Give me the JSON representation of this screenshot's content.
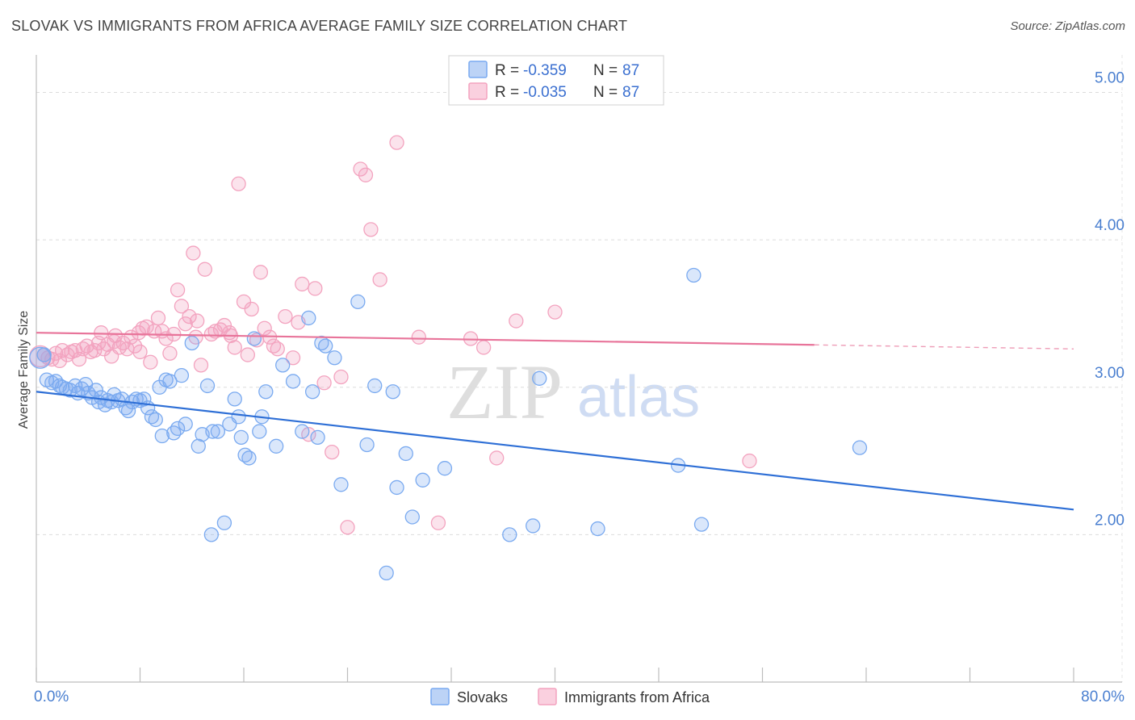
{
  "header": {
    "title": "SLOVAK VS IMMIGRANTS FROM AFRICA AVERAGE FAMILY SIZE CORRELATION CHART",
    "source": "Source: ZipAtlas.com"
  },
  "watermark": {
    "zip": "ZIP",
    "atlas": "atlas"
  },
  "stats_legend": {
    "rows": [
      {
        "r_label": "R = ",
        "r_value": "-0.359",
        "n_label": "N = ",
        "n_value": "87",
        "color": "#7aaaf0"
      },
      {
        "r_label": "R = ",
        "r_value": "-0.035",
        "n_label": "N = ",
        "n_value": "87",
        "color": "#f3a3bf"
      }
    ]
  },
  "chart_data": {
    "type": "scatter",
    "title": "SLOVAK VS IMMIGRANTS FROM AFRICA AVERAGE FAMILY SIZE CORRELATION CHART",
    "xlabel": "",
    "ylabel": "Average Family Size",
    "xlim": [
      0,
      80
    ],
    "ylim": [
      1.0,
      5.2
    ],
    "x_tick_labels": [
      "0.0%",
      "80.0%"
    ],
    "y_ticks": [
      2.0,
      3.0,
      4.0,
      5.0
    ],
    "y_tick_labels": [
      "2.00",
      "3.00",
      "4.00",
      "5.00"
    ],
    "grid": true,
    "legend_position": "bottom",
    "series": [
      {
        "name": "Slovaks",
        "color": "#7aaaf0",
        "line_color": "#2e6fd6",
        "trend": {
          "x": [
            0,
            80
          ],
          "y": [
            2.97,
            2.17
          ],
          "solid_to": 80
        },
        "points": [
          [
            0.3,
            3.2
          ],
          [
            0.6,
            3.22
          ],
          [
            0.8,
            3.05
          ],
          [
            1.2,
            3.03
          ],
          [
            1.5,
            3.04
          ],
          [
            1.8,
            3.01
          ],
          [
            2.0,
            3.0
          ],
          [
            2.3,
            2.99
          ],
          [
            2.6,
            2.98
          ],
          [
            3.0,
            3.01
          ],
          [
            3.2,
            2.96
          ],
          [
            3.5,
            2.99
          ],
          [
            3.8,
            3.02
          ],
          [
            4.0,
            2.96
          ],
          [
            4.3,
            2.93
          ],
          [
            4.6,
            2.98
          ],
          [
            4.8,
            2.9
          ],
          [
            5.0,
            2.93
          ],
          [
            5.3,
            2.88
          ],
          [
            5.5,
            2.91
          ],
          [
            5.8,
            2.9
          ],
          [
            6.0,
            2.95
          ],
          [
            6.3,
            2.91
          ],
          [
            6.6,
            2.92
          ],
          [
            6.9,
            2.86
          ],
          [
            7.1,
            2.84
          ],
          [
            7.4,
            2.9
          ],
          [
            7.7,
            2.92
          ],
          [
            8.0,
            2.91
          ],
          [
            8.3,
            2.92
          ],
          [
            8.6,
            2.86
          ],
          [
            8.9,
            2.8
          ],
          [
            9.2,
            2.78
          ],
          [
            9.5,
            3.0
          ],
          [
            9.7,
            2.67
          ],
          [
            10.0,
            3.05
          ],
          [
            10.3,
            3.04
          ],
          [
            10.6,
            2.69
          ],
          [
            10.9,
            2.72
          ],
          [
            11.2,
            3.08
          ],
          [
            11.5,
            2.75
          ],
          [
            12.0,
            3.3
          ],
          [
            12.5,
            2.6
          ],
          [
            12.8,
            2.68
          ],
          [
            13.2,
            3.01
          ],
          [
            13.6,
            2.7
          ],
          [
            14.0,
            2.7
          ],
          [
            14.5,
            2.08
          ],
          [
            14.9,
            2.75
          ],
          [
            15.3,
            2.92
          ],
          [
            15.6,
            2.8
          ],
          [
            15.8,
            2.66
          ],
          [
            16.1,
            2.54
          ],
          [
            16.4,
            2.52
          ],
          [
            16.8,
            3.33
          ],
          [
            17.2,
            2.7
          ],
          [
            17.4,
            2.8
          ],
          [
            17.7,
            2.97
          ],
          [
            18.5,
            2.6
          ],
          [
            19.0,
            3.15
          ],
          [
            19.8,
            3.04
          ],
          [
            20.5,
            2.7
          ],
          [
            21.0,
            3.47
          ],
          [
            21.3,
            2.97
          ],
          [
            21.7,
            2.66
          ],
          [
            22.0,
            3.3
          ],
          [
            22.3,
            3.28
          ],
          [
            23.0,
            3.2
          ],
          [
            23.5,
            2.34
          ],
          [
            24.8,
            3.58
          ],
          [
            25.5,
            2.61
          ],
          [
            26.1,
            3.01
          ],
          [
            27.0,
            1.74
          ],
          [
            27.5,
            2.97
          ],
          [
            27.8,
            2.32
          ],
          [
            28.5,
            2.55
          ],
          [
            29.0,
            2.12
          ],
          [
            29.8,
            2.37
          ],
          [
            31.5,
            2.45
          ],
          [
            36.5,
            2.0
          ],
          [
            38.3,
            2.06
          ],
          [
            38.8,
            3.06
          ],
          [
            43.3,
            2.04
          ],
          [
            49.5,
            2.47
          ],
          [
            50.7,
            3.76
          ],
          [
            51.3,
            2.07
          ],
          [
            63.5,
            2.59
          ],
          [
            13.5,
            2.0
          ]
        ]
      },
      {
        "name": "Immigrants from Africa",
        "color": "#f3a3bf",
        "line_color": "#e8749a",
        "trend": {
          "x": [
            0,
            80
          ],
          "y": [
            3.37,
            3.26
          ],
          "solid_to": 60
        },
        "points": [
          [
            0.3,
            3.21
          ],
          [
            0.6,
            3.22
          ],
          [
            0.9,
            3.2
          ],
          [
            1.2,
            3.19
          ],
          [
            1.5,
            3.23
          ],
          [
            1.8,
            3.18
          ],
          [
            2.0,
            3.25
          ],
          [
            2.4,
            3.22
          ],
          [
            2.7,
            3.24
          ],
          [
            3.0,
            3.25
          ],
          [
            3.3,
            3.19
          ],
          [
            3.6,
            3.26
          ],
          [
            3.9,
            3.28
          ],
          [
            4.2,
            3.24
          ],
          [
            4.5,
            3.25
          ],
          [
            4.8,
            3.3
          ],
          [
            5.0,
            3.37
          ],
          [
            5.2,
            3.26
          ],
          [
            5.5,
            3.29
          ],
          [
            5.8,
            3.21
          ],
          [
            6.1,
            3.35
          ],
          [
            6.4,
            3.27
          ],
          [
            6.7,
            3.3
          ],
          [
            7.0,
            3.26
          ],
          [
            7.3,
            3.34
          ],
          [
            7.6,
            3.28
          ],
          [
            7.9,
            3.37
          ],
          [
            8.2,
            3.4
          ],
          [
            8.5,
            3.41
          ],
          [
            8.8,
            3.17
          ],
          [
            9.1,
            3.38
          ],
          [
            9.4,
            3.47
          ],
          [
            9.7,
            3.38
          ],
          [
            10.0,
            3.33
          ],
          [
            10.3,
            3.23
          ],
          [
            10.6,
            3.36
          ],
          [
            10.9,
            3.66
          ],
          [
            11.2,
            3.55
          ],
          [
            11.5,
            3.43
          ],
          [
            11.8,
            3.48
          ],
          [
            12.1,
            3.91
          ],
          [
            12.4,
            3.45
          ],
          [
            12.7,
            3.15
          ],
          [
            13.0,
            3.8
          ],
          [
            13.5,
            3.36
          ],
          [
            13.8,
            3.38
          ],
          [
            14.2,
            3.39
          ],
          [
            14.5,
            3.42
          ],
          [
            14.9,
            3.37
          ],
          [
            15.3,
            3.27
          ],
          [
            15.6,
            4.38
          ],
          [
            16.0,
            3.58
          ],
          [
            16.3,
            3.22
          ],
          [
            16.6,
            3.53
          ],
          [
            17.0,
            3.32
          ],
          [
            17.3,
            3.78
          ],
          [
            17.6,
            3.4
          ],
          [
            18.0,
            3.34
          ],
          [
            18.3,
            3.28
          ],
          [
            18.6,
            3.26
          ],
          [
            19.2,
            3.48
          ],
          [
            19.8,
            3.2
          ],
          [
            20.2,
            3.44
          ],
          [
            20.5,
            3.7
          ],
          [
            21.0,
            2.68
          ],
          [
            21.5,
            3.67
          ],
          [
            22.2,
            3.03
          ],
          [
            22.8,
            2.56
          ],
          [
            23.5,
            3.07
          ],
          [
            24.0,
            2.05
          ],
          [
            25.0,
            4.48
          ],
          [
            25.4,
            4.44
          ],
          [
            25.8,
            4.07
          ],
          [
            26.5,
            3.73
          ],
          [
            27.8,
            4.66
          ],
          [
            29.5,
            3.34
          ],
          [
            31.0,
            2.08
          ],
          [
            33.5,
            3.33
          ],
          [
            34.5,
            3.27
          ],
          [
            35.5,
            2.52
          ],
          [
            37.0,
            3.45
          ],
          [
            40.0,
            3.51
          ],
          [
            55.0,
            2.5
          ],
          [
            12.3,
            3.34
          ],
          [
            8.0,
            3.24
          ],
          [
            6.0,
            3.31
          ],
          [
            15.0,
            3.35
          ]
        ]
      }
    ]
  }
}
